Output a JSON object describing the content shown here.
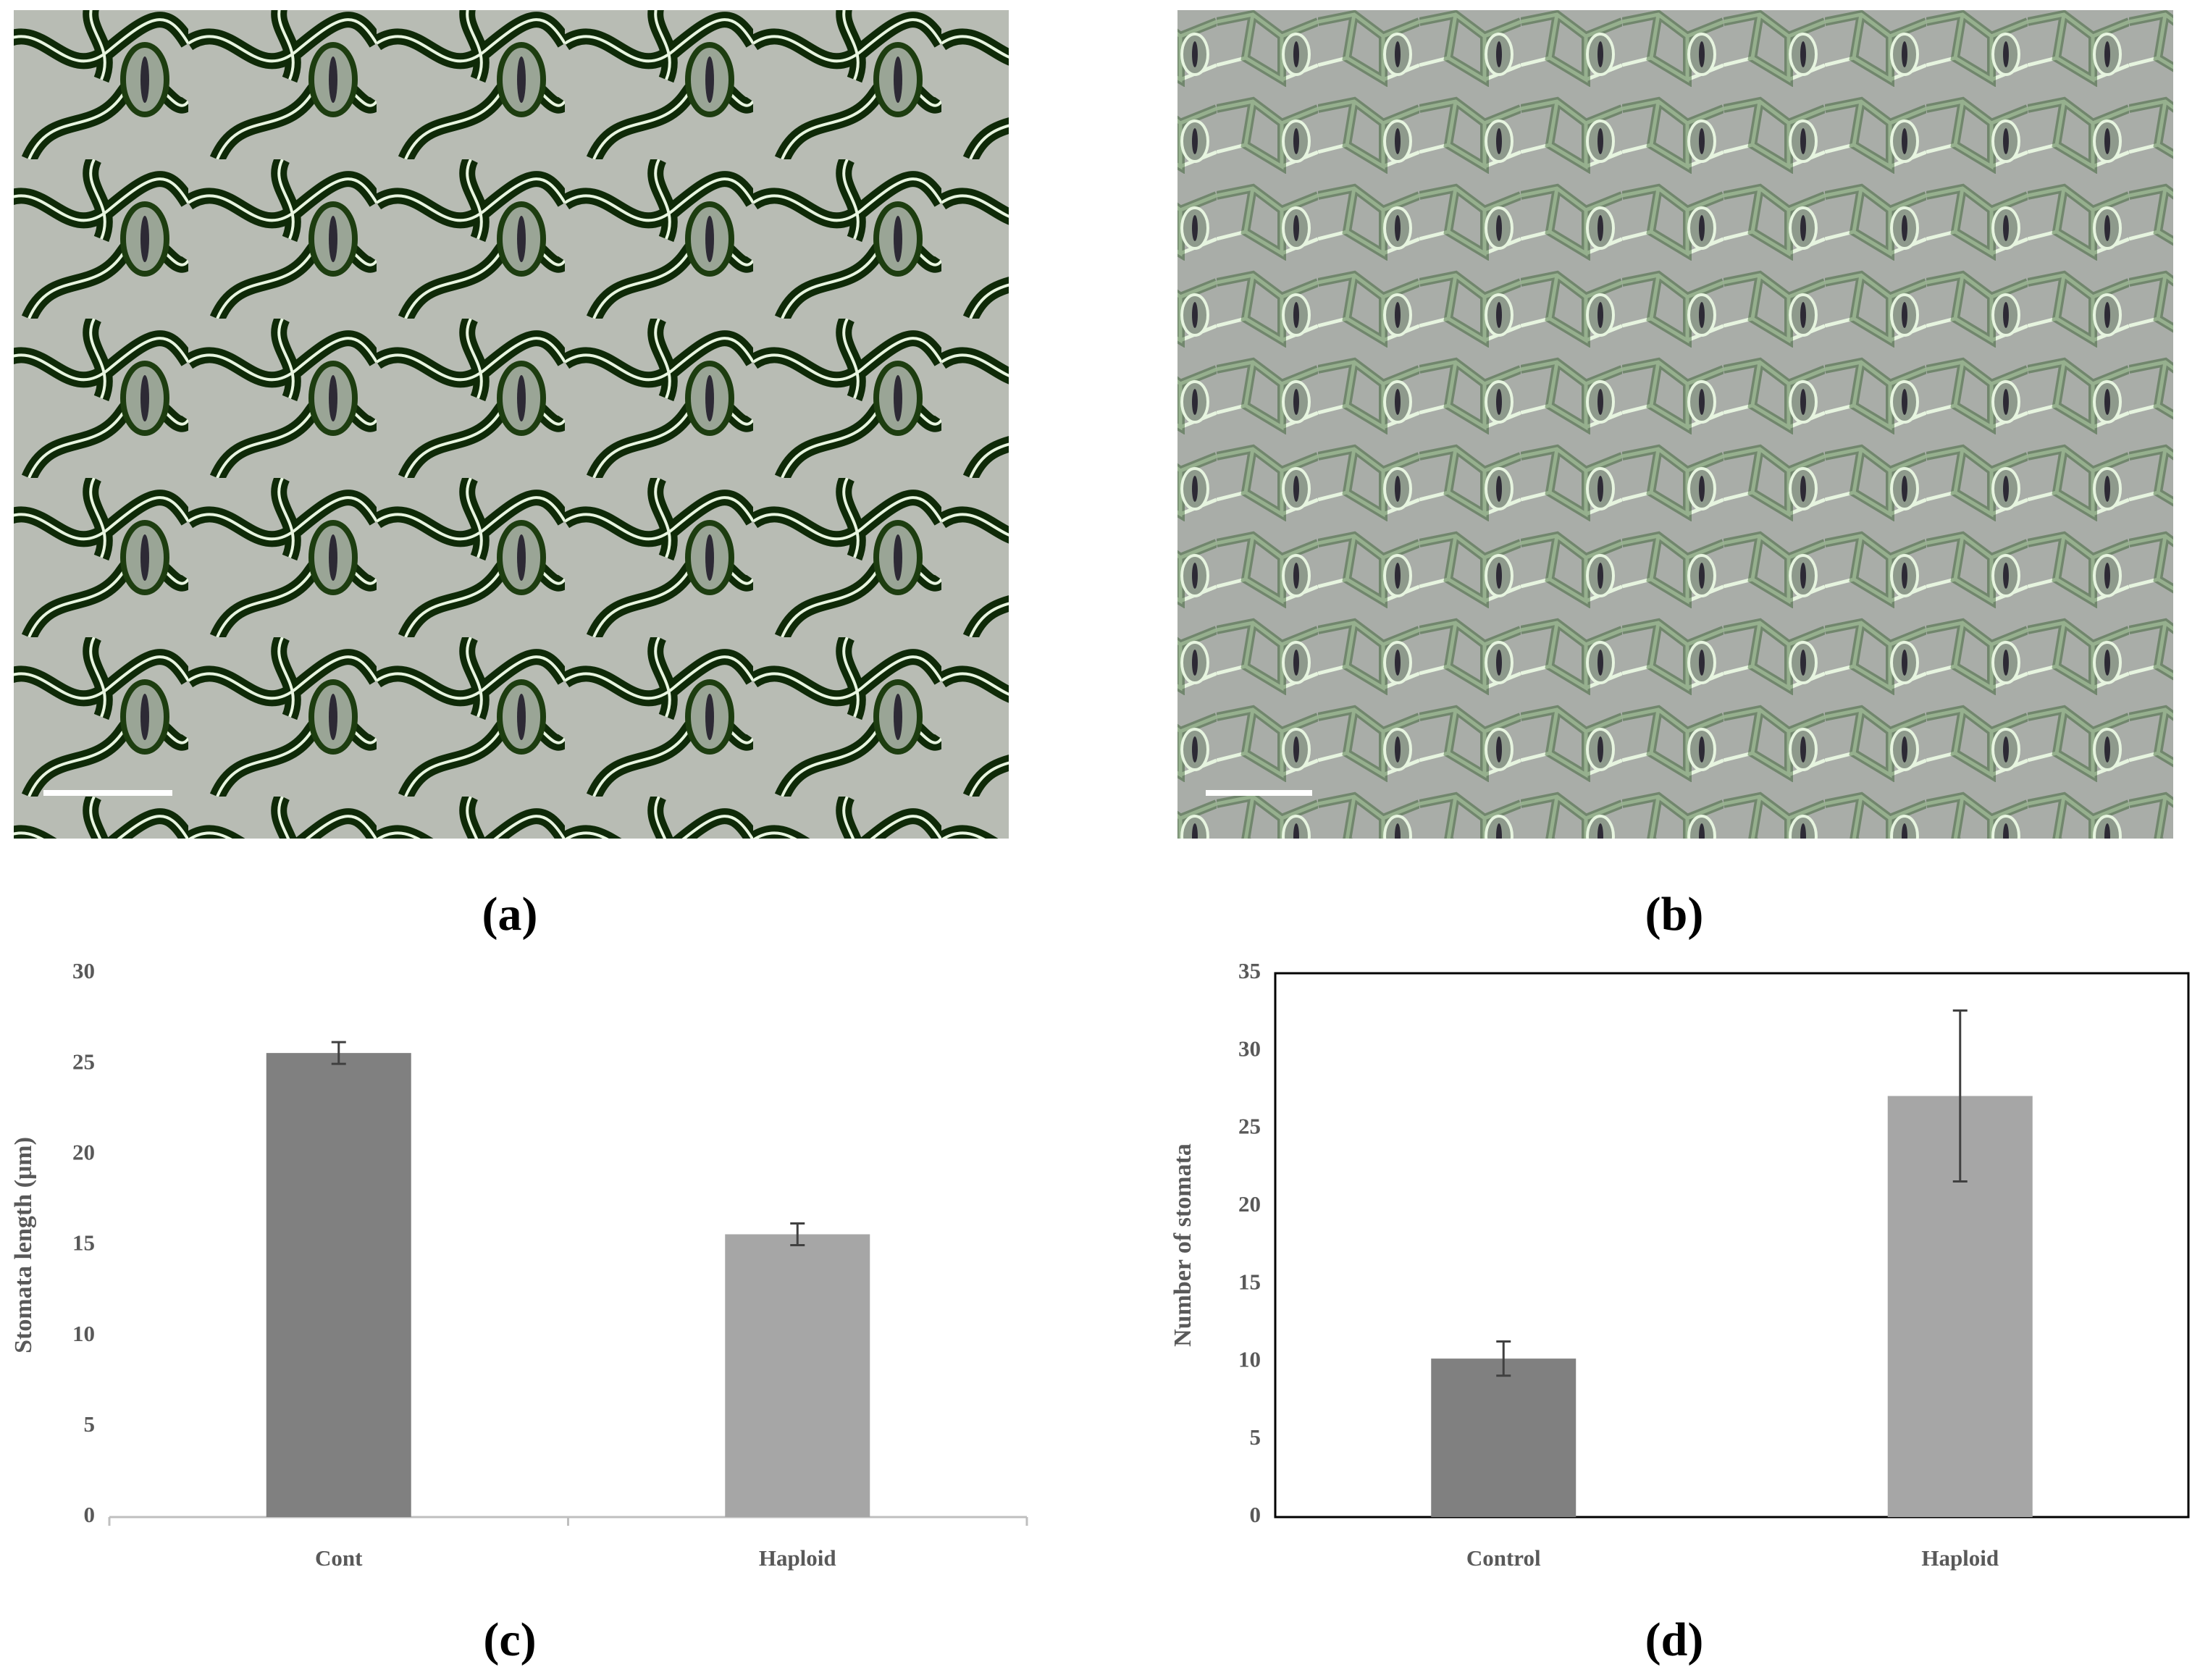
{
  "images": [
    {
      "label": "(a)"
    },
    {
      "label": "(b)"
    }
  ],
  "chart_data": [
    {
      "type": "bar",
      "label": "(c)",
      "ylabel": "Stomata length (μm)",
      "categories": [
        "Cont",
        "Haploid"
      ],
      "values": [
        25.6,
        15.6
      ],
      "errors": [
        0.6,
        0.6
      ],
      "colors": [
        "#808080",
        "#a6a6a6"
      ],
      "ylim": [
        0,
        30
      ],
      "yticks": [
        0,
        5,
        10,
        15,
        20,
        25,
        30
      ],
      "grid": false,
      "frame": false
    },
    {
      "type": "bar",
      "label": "(d)",
      "ylabel": "Number of stomata",
      "categories": [
        "Control",
        "Haploid"
      ],
      "values": [
        10.2,
        27.1
      ],
      "errors": [
        1.1,
        5.5
      ],
      "colors": [
        "#808080",
        "#a6a6a6"
      ],
      "ylim": [
        0,
        35
      ],
      "yticks": [
        0,
        5,
        10,
        15,
        20,
        25,
        30,
        35
      ],
      "grid": false,
      "frame": true
    }
  ]
}
